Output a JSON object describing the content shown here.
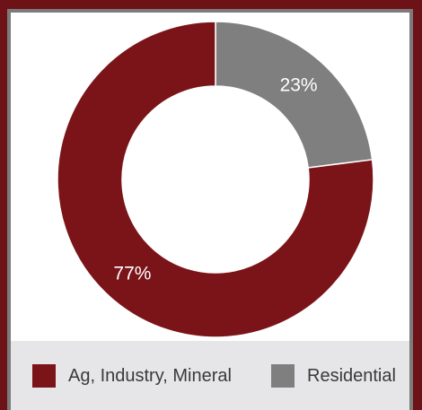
{
  "chart_data": {
    "type": "pie",
    "donut": true,
    "categories": [
      "Residential",
      "Ag, Industry, Mineral"
    ],
    "values": [
      23,
      77
    ],
    "labels": [
      "23%",
      "77%"
    ],
    "colors": [
      "#7f7f7f",
      "#7a1418"
    ],
    "legend_position": "bottom"
  },
  "legend": {
    "items": [
      {
        "label": "Ag, Industry, Mineral",
        "color": "#7a1418"
      },
      {
        "label": "Residential",
        "color": "#7f7f7f"
      }
    ]
  }
}
